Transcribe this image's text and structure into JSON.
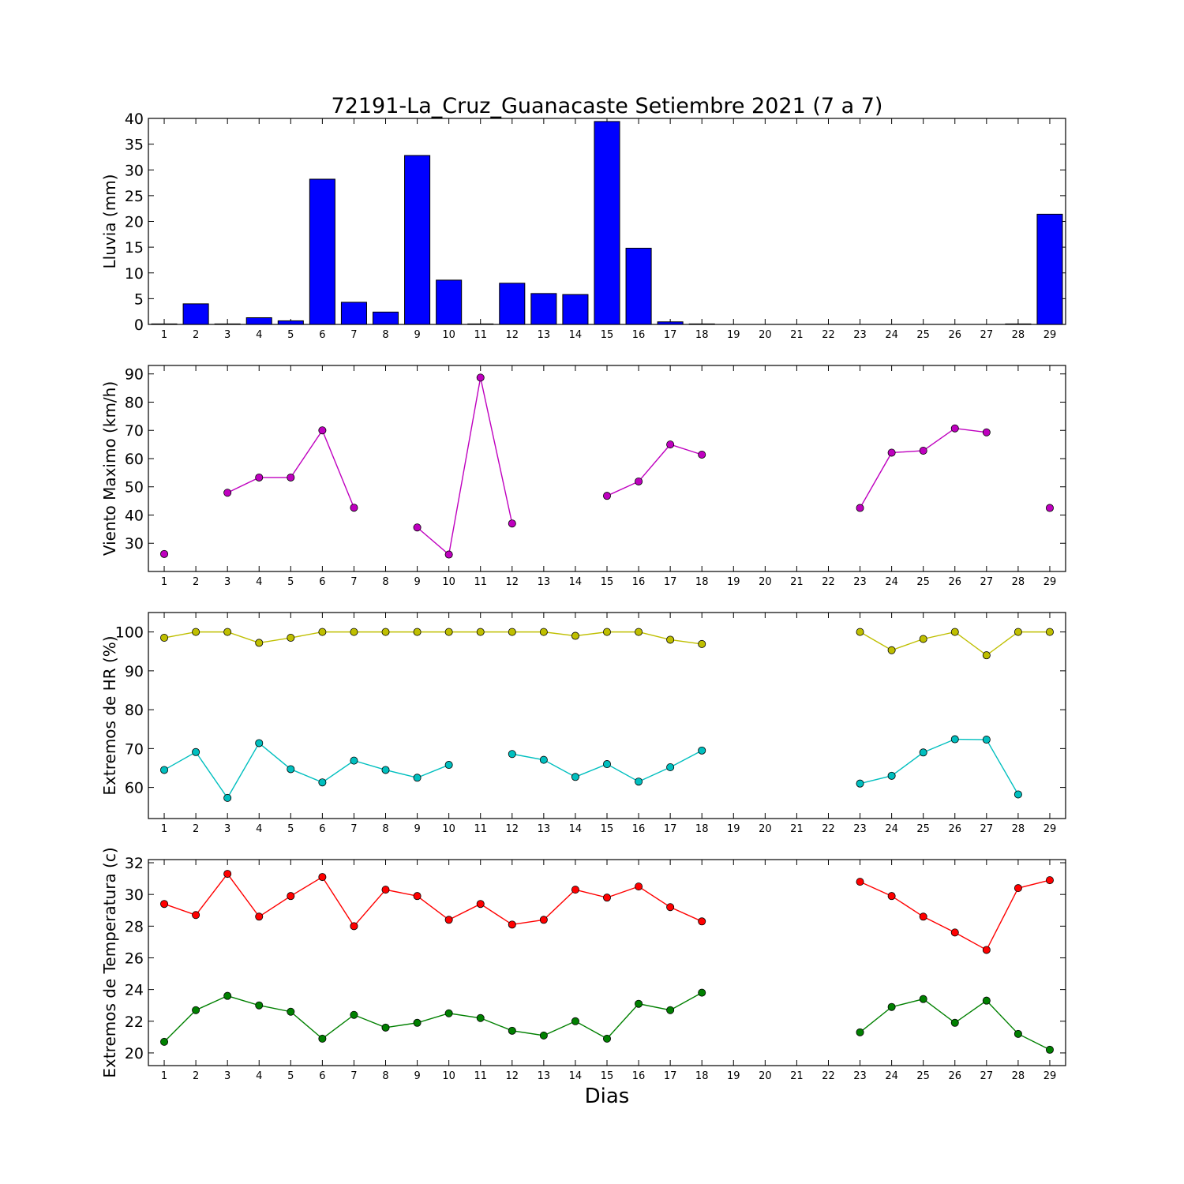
{
  "title": "72191-La_Cruz_Guanacaste Setiembre 2021  (7 a 7)",
  "xlabel": "Dias",
  "days": [
    1,
    2,
    3,
    4,
    5,
    6,
    7,
    8,
    9,
    10,
    11,
    12,
    13,
    14,
    15,
    16,
    17,
    18,
    19,
    20,
    21,
    22,
    23,
    24,
    25,
    26,
    27,
    28,
    29
  ],
  "chart_data": [
    {
      "type": "bar",
      "ylabel": "Lluvia (mm)",
      "ylim": [
        0,
        40
      ],
      "yticks": [
        0,
        5,
        10,
        15,
        20,
        25,
        30,
        35,
        40
      ],
      "series": [
        {
          "name": "",
          "color": "#0000ff",
          "values": [
            0.1,
            4.0,
            0.1,
            1.3,
            0.7,
            28.2,
            4.3,
            2.4,
            32.8,
            8.6,
            0.1,
            8.0,
            6.0,
            5.8,
            39.4,
            14.8,
            0.5,
            0.1,
            0,
            0,
            0,
            0,
            0,
            0,
            0,
            0,
            0,
            0.1,
            21.4
          ]
        }
      ]
    },
    {
      "type": "line",
      "ylabel": "Viento Maximo (km/h)",
      "ylim": [
        20,
        93
      ],
      "yticks": [
        30,
        40,
        50,
        60,
        70,
        80,
        90
      ],
      "series": [
        {
          "name": "",
          "color": "#bf00bf",
          "values": [
            26.2,
            null,
            47.9,
            53.3,
            53.3,
            70.0,
            42.6,
            null,
            35.6,
            26.0,
            88.7,
            37.0,
            null,
            null,
            46.8,
            51.9,
            65.0,
            61.4,
            null,
            null,
            null,
            null,
            42.5,
            62.1,
            62.8,
            70.7,
            69.3,
            null,
            42.5
          ]
        }
      ]
    },
    {
      "type": "line",
      "ylabel": "Extremos de HR (%)",
      "ylim": [
        52,
        105
      ],
      "yticks": [
        60,
        70,
        80,
        90,
        100
      ],
      "series": [
        {
          "name": "",
          "color": "#bfbf00",
          "values": [
            98.5,
            100,
            100,
            97.2,
            98.5,
            100,
            100,
            100,
            100,
            100,
            100,
            100,
            100,
            99,
            100,
            100,
            98,
            96.9,
            null,
            null,
            null,
            null,
            100,
            95.3,
            98.2,
            100,
            94,
            100,
            100
          ]
        },
        {
          "name": "",
          "color": "#00bfbf",
          "values": [
            64.5,
            69.1,
            57.3,
            71.4,
            64.7,
            61.3,
            66.9,
            64.5,
            62.5,
            65.8,
            null,
            68.6,
            67.1,
            62.7,
            66,
            61.5,
            65.2,
            69.5,
            null,
            null,
            null,
            null,
            61,
            63,
            69,
            72.4,
            72.3,
            58.2,
            null
          ]
        }
      ]
    },
    {
      "type": "line",
      "ylabel": "Extremos de Temperatura (c)",
      "ylim": [
        19.2,
        32.2
      ],
      "yticks": [
        20,
        22,
        24,
        26,
        28,
        30,
        32
      ],
      "series": [
        {
          "name": "",
          "color": "#ff0000",
          "values": [
            29.4,
            28.7,
            31.3,
            28.6,
            29.9,
            31.1,
            28,
            30.3,
            29.9,
            28.4,
            29.4,
            28.1,
            28.4,
            30.3,
            29.8,
            30.5,
            29.2,
            28.3,
            null,
            null,
            null,
            null,
            30.8,
            29.9,
            28.6,
            27.6,
            26.5,
            30.4,
            30.9
          ]
        },
        {
          "name": "",
          "color": "#008000",
          "values": [
            20.7,
            22.7,
            23.6,
            23,
            22.6,
            20.9,
            22.4,
            21.6,
            21.9,
            22.5,
            22.2,
            21.4,
            21.1,
            22,
            20.9,
            23.1,
            22.7,
            23.8,
            null,
            null,
            null,
            null,
            21.3,
            22.9,
            23.4,
            21.9,
            23.3,
            21.2,
            20.2
          ]
        }
      ]
    }
  ]
}
